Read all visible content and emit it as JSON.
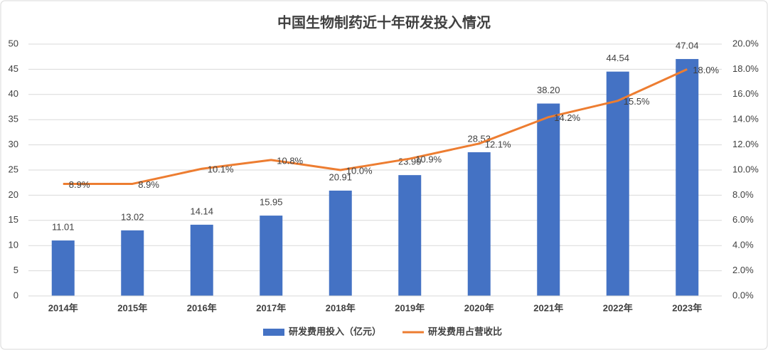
{
  "chart_data": {
    "type": "combo",
    "title": "中国生物制药近十年研发投入情况",
    "categories": [
      "2014年",
      "2015年",
      "2016年",
      "2017年",
      "2018年",
      "2019年",
      "2020年",
      "2021年",
      "2022年",
      "2023年"
    ],
    "series": [
      {
        "name": "研发费用投入（亿元）",
        "type": "bar",
        "color": "#4472c4",
        "values": [
          11.01,
          13.02,
          14.14,
          15.95,
          20.91,
          23.99,
          28.53,
          38.2,
          44.54,
          47.04
        ],
        "value_labels": [
          "11.01",
          "13.02",
          "14.14",
          "15.95",
          "20.91",
          "23.99",
          "28.53",
          "38.20",
          "44.54",
          "47.04"
        ]
      },
      {
        "name": "研发费用占营收比",
        "type": "line",
        "axis": "y2",
        "color": "#ed7d31",
        "values": [
          8.9,
          8.9,
          10.1,
          10.8,
          10.0,
          10.9,
          12.1,
          14.2,
          15.5,
          18.0
        ],
        "value_labels": [
          "8.9%",
          "8.9%",
          "10.1%",
          "10.8%",
          "10.0%",
          "10.9%",
          "12.1%",
          "14.2%",
          "15.5%",
          "18.0%"
        ]
      }
    ],
    "ylim": [
      0,
      50
    ],
    "yticks": [
      0,
      5,
      10,
      15,
      20,
      25,
      30,
      35,
      40,
      45,
      50
    ],
    "y2lim": [
      0,
      20
    ],
    "y2ticks": [
      {
        "value": 0,
        "label": "0.0%"
      },
      {
        "value": 2,
        "label": "2.0%"
      },
      {
        "value": 4,
        "label": "4.0%"
      },
      {
        "value": 6,
        "label": "6.0%"
      },
      {
        "value": 8,
        "label": "8.0%"
      },
      {
        "value": 10,
        "label": "10.0%"
      },
      {
        "value": 12,
        "label": "12.0%"
      },
      {
        "value": 14,
        "label": "14.0%"
      },
      {
        "value": 16,
        "label": "16.0%"
      },
      {
        "value": 18,
        "label": "18.0%"
      },
      {
        "value": 20,
        "label": "20.0%"
      }
    ],
    "grid": true,
    "legend": "bottom"
  }
}
